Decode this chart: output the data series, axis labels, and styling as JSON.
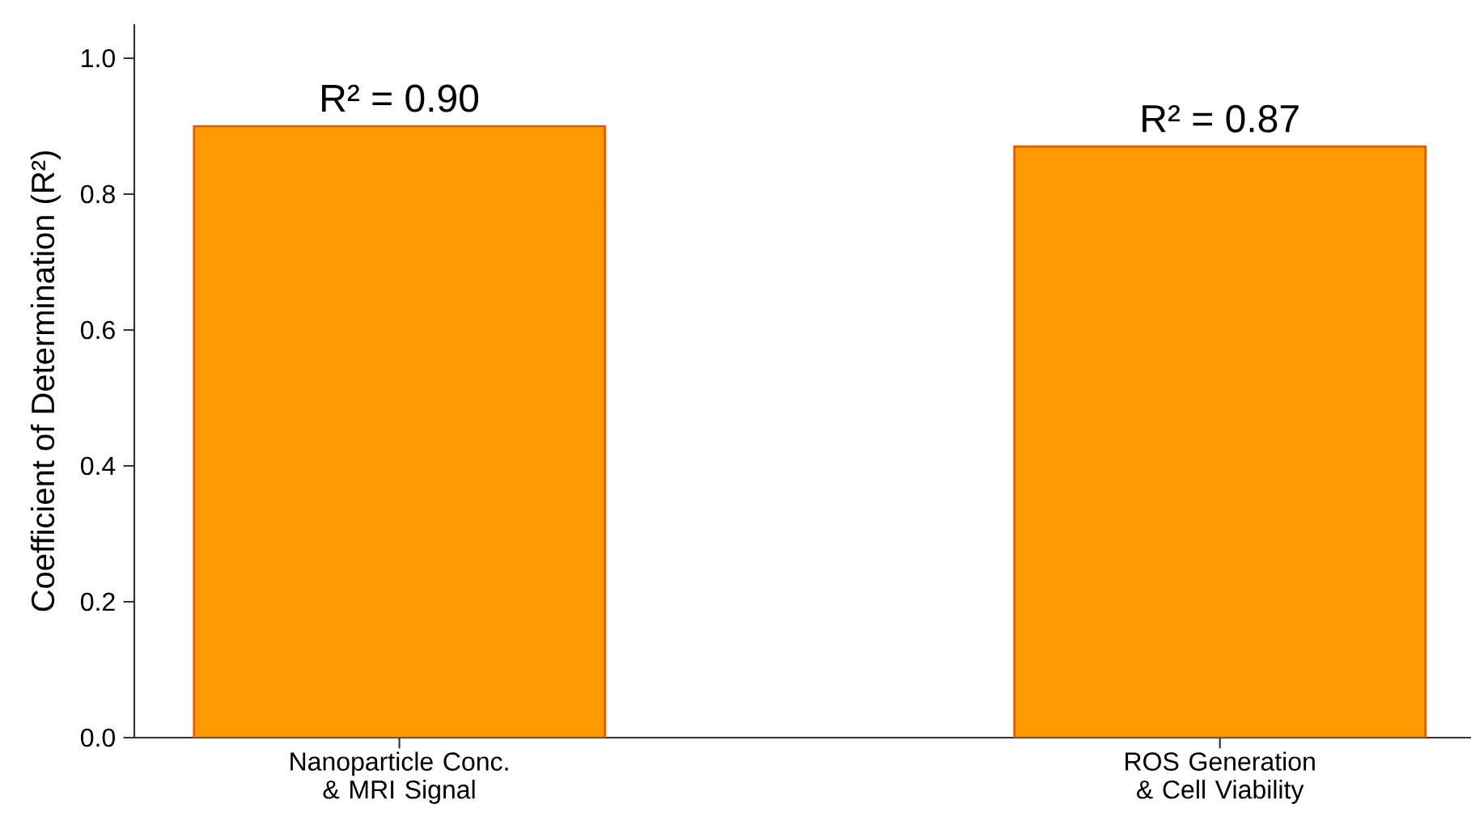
{
  "chart_data": {
    "type": "bar",
    "ylabel": "Coefficient of Determination (R²)",
    "categories": [
      "Nanoparticle Conc. & MRI Signal",
      "ROS Generation & Cell Viability"
    ],
    "values": [
      0.9,
      0.87
    ],
    "value_labels": [
      "R² = 0.90",
      "R² = 0.87"
    ],
    "color": "#ff9900",
    "ylim": [
      0,
      1.05
    ],
    "yticks": [
      {
        "value": 0,
        "label": "0.0"
      },
      0.2,
      0.4,
      0.6,
      0.8,
      {
        "value": 1.0,
        "label": "1.0"
      }
    ],
    "grid": false
  }
}
